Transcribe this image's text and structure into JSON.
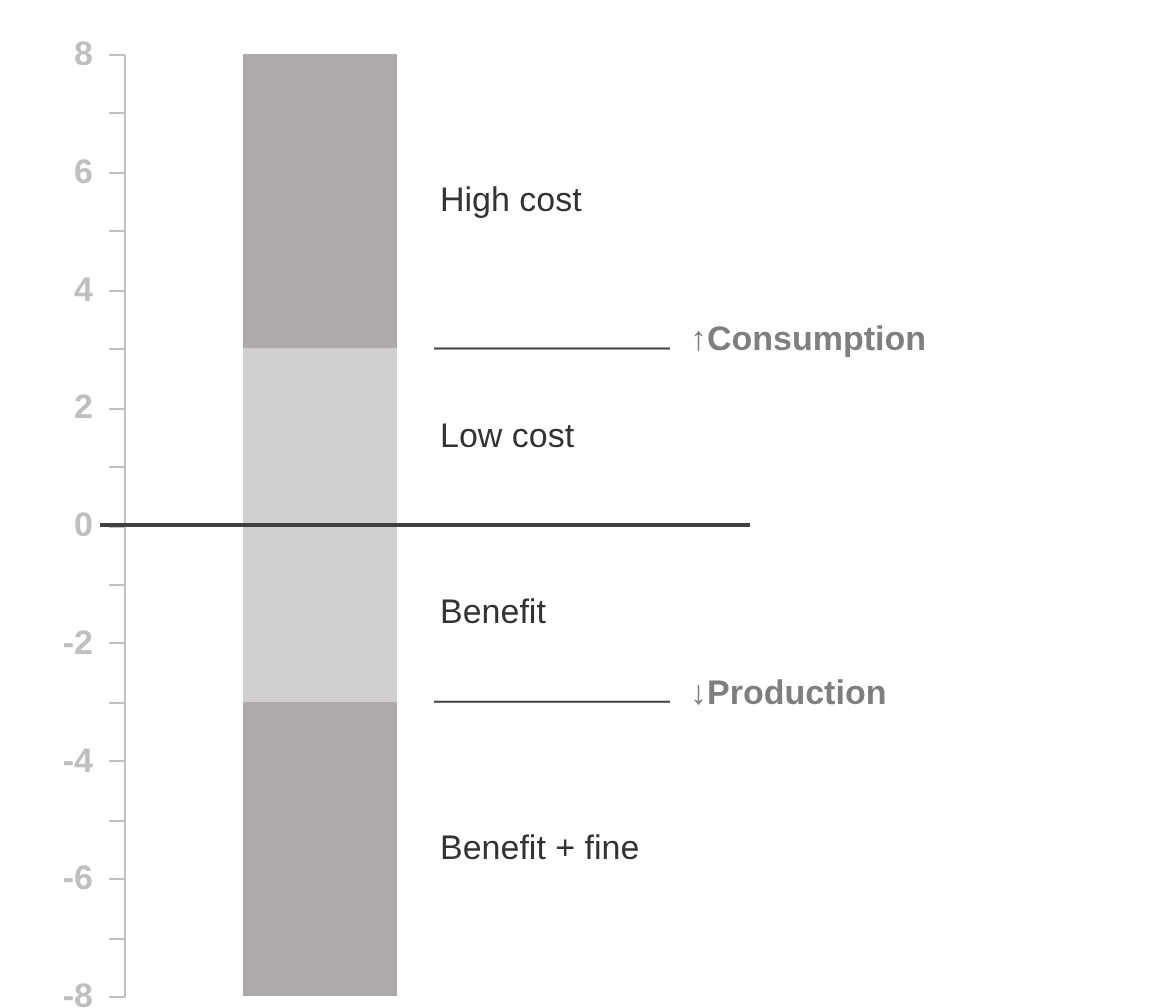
{
  "chart_data": {
    "type": "bar",
    "stacked": true,
    "categories": [
      null
    ],
    "series": [
      {
        "name": "Low cost",
        "color": "#d0cece",
        "values": [
          3
        ]
      },
      {
        "name": "High cost",
        "color": "#aeaaaa",
        "values": [
          5
        ]
      },
      {
        "name": "Benefit",
        "color": "#d0cece",
        "values": [
          -3
        ]
      },
      {
        "name": "Benefit + fine",
        "color": "#aeaaaa",
        "values": [
          -5
        ]
      }
    ],
    "ylim": [
      -8,
      8
    ],
    "yticks": [
      -8,
      {
        "value": -7,
        "label": null
      },
      -6,
      {
        "value": -5,
        "label": null
      },
      -4,
      {
        "value": -3,
        "label": null
      },
      -2,
      {
        "value": -1,
        "label": null
      },
      0,
      {
        "value": 1,
        "label": null
      },
      2,
      {
        "value": 3,
        "label": null
      },
      4,
      {
        "value": 5,
        "label": null
      },
      6,
      {
        "value": 7,
        "label": null
      },
      8
    ],
    "ref_lines": [
      {
        "axis": "y",
        "value": 0,
        "color": "#404040"
      },
      {
        "axis": "y",
        "value": 3,
        "label": "↑Consumption",
        "color": "#404040"
      },
      {
        "axis": "y",
        "value": -3,
        "label": "↓Production",
        "color": "#404040"
      }
    ],
    "legend": false,
    "grid": false
  }
}
